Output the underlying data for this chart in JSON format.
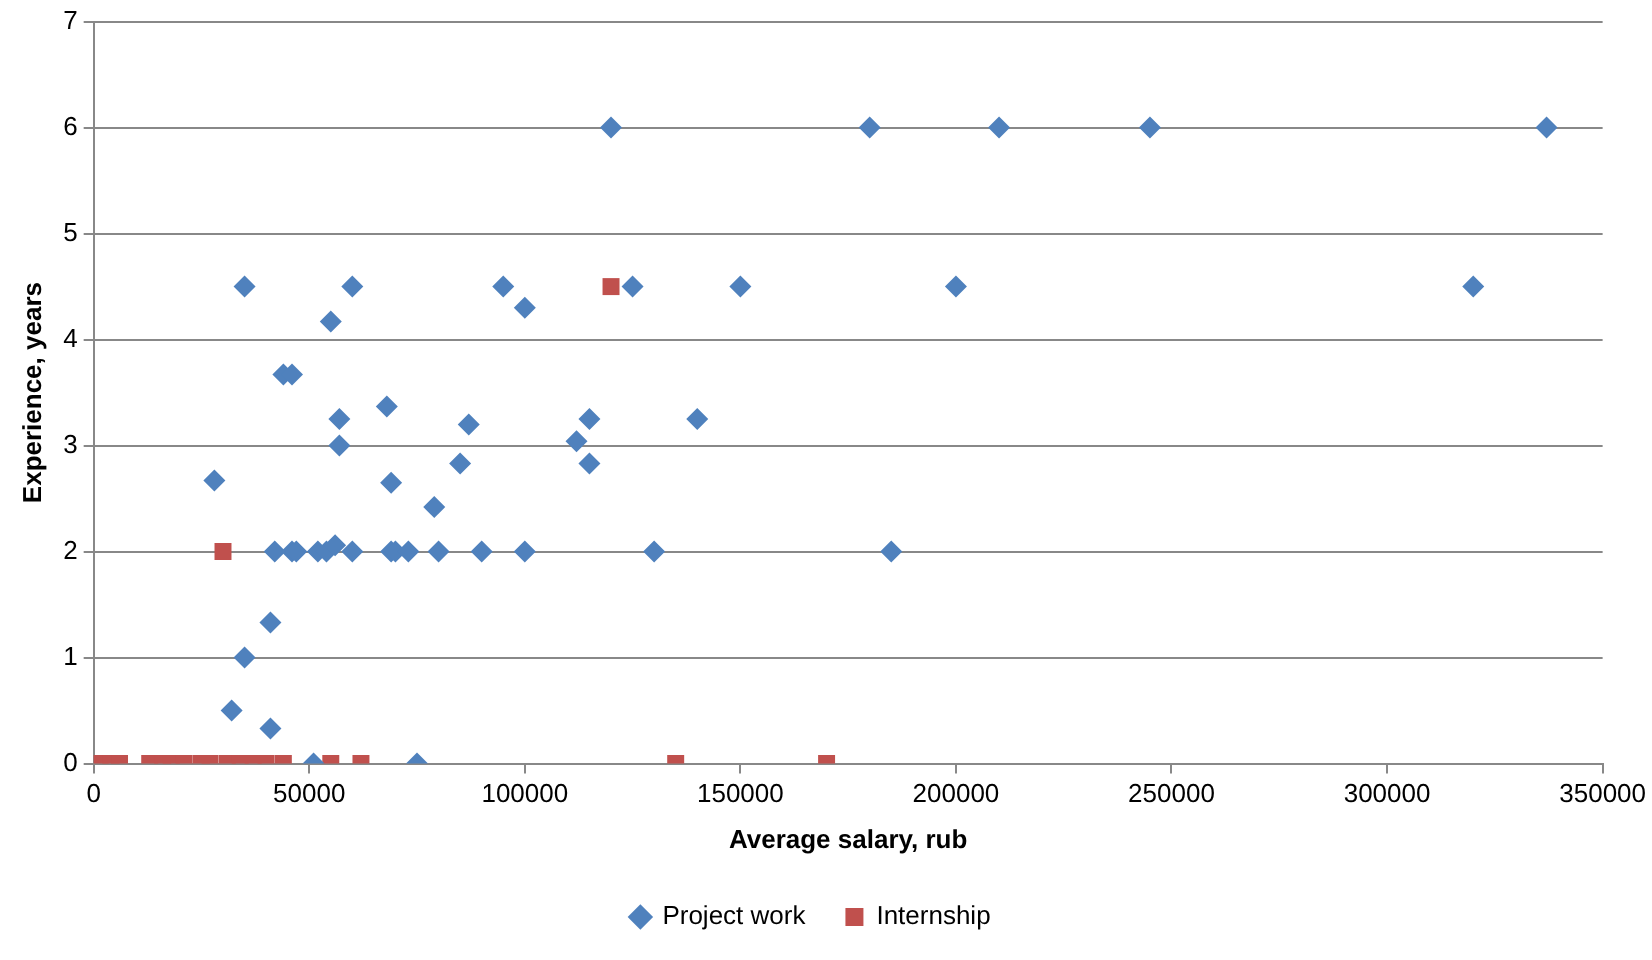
{
  "chart_data": {
    "type": "scatter",
    "xlabel": "Average salary, rub",
    "ylabel": "Experience, years",
    "xlim": [
      0,
      350000
    ],
    "xticks": [
      0,
      50000,
      100000,
      150000,
      200000,
      250000,
      300000,
      350000
    ],
    "ylim": [
      0,
      7
    ],
    "yticks": [
      0,
      1,
      2,
      3,
      4,
      5,
      6,
      7
    ],
    "grid": "y",
    "legend": "bottom",
    "series": [
      {
        "name": "Project work",
        "color": "#4f81bd",
        "marker": "diamond",
        "x": [
          120000,
          180000,
          210000,
          245000,
          337000,
          35000,
          60000,
          95000,
          100000,
          125000,
          150000,
          200000,
          320000,
          55000,
          44000,
          46000,
          68000,
          57000,
          57000,
          87000,
          115000,
          140000,
          112000,
          115000,
          85000,
          69000,
          79000,
          28000,
          42000,
          46000,
          47000,
          52000,
          54000,
          56000,
          60000,
          69000,
          70000,
          73000,
          80000,
          90000,
          100000,
          130000,
          185000,
          41000,
          35000,
          32000,
          41000,
          75000,
          51000
        ],
        "values": [
          6,
          6,
          6,
          6,
          6,
          4.5,
          4.5,
          4.5,
          4.3,
          4.5,
          4.5,
          4.5,
          4.5,
          4.17,
          3.67,
          3.67,
          3.37,
          3.25,
          3.0,
          3.2,
          3.25,
          3.25,
          3.04,
          2.83,
          2.83,
          2.65,
          2.42,
          2.67,
          2,
          2,
          2,
          2,
          2,
          2.06,
          2,
          2,
          2,
          2,
          2,
          2,
          2,
          2,
          2,
          1.33,
          1.0,
          0.5,
          0.33,
          0,
          0
        ]
      },
      {
        "name": "Internship",
        "color": "#c0504d",
        "marker": "square",
        "x": [
          30000,
          120000,
          1500,
          4000,
          6000,
          13000,
          16000,
          18000,
          21000,
          25000,
          27000,
          31000,
          34000,
          37000,
          40000,
          44000,
          55000,
          62000,
          135000,
          170000
        ],
        "values": [
          2,
          4.5,
          0,
          0,
          0,
          0,
          0,
          0,
          0,
          0,
          0,
          0,
          0,
          0,
          0,
          0,
          0,
          0,
          0,
          0
        ]
      }
    ]
  }
}
